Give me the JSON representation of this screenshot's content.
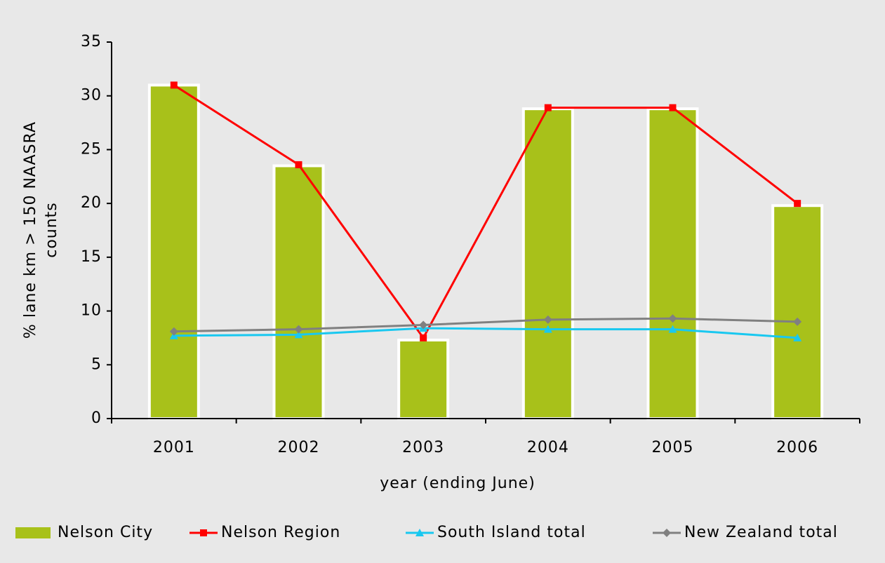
{
  "chart_data": {
    "type": "bar_line",
    "x_label": "year (ending June)",
    "y_label": [
      "% lane km > 150 NAASRA",
      "counts"
    ],
    "categories": [
      "2001",
      "2002",
      "2003",
      "2004",
      "2005",
      "2006"
    ],
    "ylim": [
      0,
      35
    ],
    "yticks": [
      0,
      5,
      10,
      15,
      20,
      25,
      30,
      35
    ],
    "series": [
      {
        "name": "Nelson City",
        "type": "bar",
        "color": "#a8c11a",
        "values": [
          31,
          23.5,
          7.3,
          28.8,
          28.8,
          19.8
        ]
      },
      {
        "name": "Nelson Region",
        "type": "line",
        "marker": "square",
        "color": "#ff0000",
        "values": [
          31,
          23.6,
          7.5,
          28.9,
          28.9,
          20
        ]
      },
      {
        "name": "South Island total",
        "type": "line",
        "marker": "triangle",
        "color": "#19c8f0",
        "values": [
          7.7,
          7.8,
          8.4,
          8.3,
          8.3,
          7.5
        ]
      },
      {
        "name": "New Zealand total",
        "type": "line",
        "marker": "diamond",
        "color": "#808080",
        "values": [
          8.1,
          8.3,
          8.7,
          9.2,
          9.3,
          9.0
        ]
      }
    ],
    "legend": "bottom"
  }
}
